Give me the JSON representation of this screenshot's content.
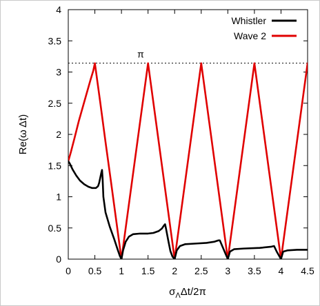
{
  "chart_data": {
    "type": "line",
    "title": "",
    "xlabel": "σ",
    "xlabel_sub": "Λ",
    "xlabel_rest": "Δt/2π",
    "ylabel": "Re(ω Δt)",
    "xlim": [
      0,
      4.5
    ],
    "ylim": [
      0,
      4
    ],
    "xticks": [
      "0",
      "0.5",
      "1",
      "1.5",
      "2",
      "2.5",
      "3",
      "3.5",
      "4",
      "4.5"
    ],
    "yticks": [
      "0",
      "0.5",
      "1",
      "1.5",
      "2",
      "2.5",
      "3",
      "3.5",
      "4"
    ],
    "grid": false,
    "legend_position": "top-right",
    "reference_line": {
      "label": "π",
      "y": 3.14159,
      "style": "dotted"
    },
    "series": [
      {
        "name": "Whistler",
        "color": "#000000",
        "points": [
          [
            0.0,
            1.57
          ],
          [
            0.03,
            1.53
          ],
          [
            0.08,
            1.44
          ],
          [
            0.15,
            1.34
          ],
          [
            0.22,
            1.26
          ],
          [
            0.3,
            1.2
          ],
          [
            0.38,
            1.16
          ],
          [
            0.45,
            1.14
          ],
          [
            0.52,
            1.14
          ],
          [
            0.56,
            1.17
          ],
          [
            0.58,
            1.22
          ],
          [
            0.6,
            1.3
          ],
          [
            0.62,
            1.38
          ],
          [
            0.635,
            1.43
          ],
          [
            0.645,
            1.3
          ],
          [
            0.66,
            1.0
          ],
          [
            0.7,
            0.75
          ],
          [
            0.78,
            0.52
          ],
          [
            0.86,
            0.33
          ],
          [
            0.93,
            0.15
          ],
          [
            0.97,
            0.05
          ],
          [
            1.0,
            0.0
          ],
          [
            1.03,
            0.14
          ],
          [
            1.08,
            0.28
          ],
          [
            1.14,
            0.36
          ],
          [
            1.22,
            0.4
          ],
          [
            1.35,
            0.41
          ],
          [
            1.5,
            0.41
          ],
          [
            1.6,
            0.42
          ],
          [
            1.7,
            0.45
          ],
          [
            1.76,
            0.49
          ],
          [
            1.8,
            0.54
          ],
          [
            1.82,
            0.56
          ],
          [
            1.84,
            0.48
          ],
          [
            1.88,
            0.3
          ],
          [
            1.92,
            0.13
          ],
          [
            1.96,
            0.04
          ],
          [
            2.0,
            0.0
          ],
          [
            2.04,
            0.14
          ],
          [
            2.1,
            0.21
          ],
          [
            2.2,
            0.24
          ],
          [
            2.4,
            0.25
          ],
          [
            2.6,
            0.26
          ],
          [
            2.75,
            0.28
          ],
          [
            2.82,
            0.3
          ],
          [
            2.85,
            0.3
          ],
          [
            2.9,
            0.2
          ],
          [
            2.95,
            0.1
          ],
          [
            3.0,
            0.0
          ],
          [
            3.04,
            0.12
          ],
          [
            3.12,
            0.16
          ],
          [
            3.3,
            0.17
          ],
          [
            3.6,
            0.18
          ],
          [
            3.82,
            0.2
          ],
          [
            3.87,
            0.21
          ],
          [
            3.92,
            0.12
          ],
          [
            4.0,
            0.0
          ],
          [
            4.04,
            0.12
          ],
          [
            4.12,
            0.14
          ],
          [
            4.3,
            0.15
          ],
          [
            4.5,
            0.15
          ]
        ]
      },
      {
        "name": "Wave 2",
        "color": "#e00000",
        "points": [
          [
            0.0,
            1.57
          ],
          [
            0.05,
            1.72
          ],
          [
            0.12,
            1.95
          ],
          [
            0.2,
            2.22
          ],
          [
            0.28,
            2.46
          ],
          [
            0.36,
            2.7
          ],
          [
            0.42,
            2.88
          ],
          [
            0.47,
            3.02
          ],
          [
            0.5,
            3.14
          ],
          [
            0.6,
            2.52
          ],
          [
            0.7,
            1.88
          ],
          [
            0.8,
            1.26
          ],
          [
            0.9,
            0.63
          ],
          [
            1.0,
            0.0
          ],
          [
            1.5,
            3.14
          ],
          [
            2.0,
            0.0
          ],
          [
            2.5,
            3.14
          ],
          [
            3.0,
            0.0
          ],
          [
            3.5,
            3.14
          ],
          [
            4.0,
            0.0
          ],
          [
            4.5,
            3.14
          ]
        ]
      }
    ]
  }
}
